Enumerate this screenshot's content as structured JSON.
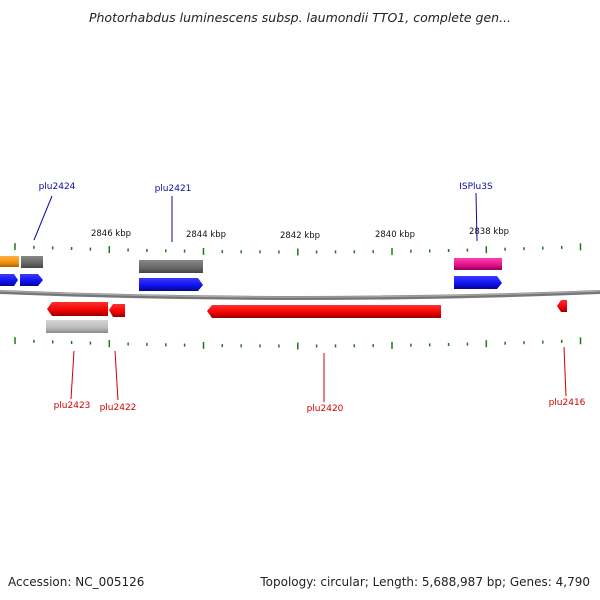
{
  "title": "Photorhabdus luminescens subsp. laumondii TTO1, complete gen...",
  "footer": {
    "accession": "Accession: NC_005126",
    "summary": "Topology: circular; Length: 5,688,987 bp; Genes: 4,790"
  },
  "scale_labels": [
    "2846 kbp",
    "2844 kbp",
    "2842 kbp",
    "2840 kbp",
    "2838 kbp"
  ],
  "top_labels": [
    {
      "text": "plu2424",
      "color": "#0b0b9e"
    },
    {
      "text": "plu2421",
      "color": "#0b0b9e"
    },
    {
      "text": "ISPlu3S",
      "color": "#0b0b9e"
    }
  ],
  "bottom_labels": [
    {
      "text": "plu2423",
      "color": "#d00000"
    },
    {
      "text": "plu2422",
      "color": "#d00000"
    },
    {
      "text": "plu2420",
      "color": "#d00000"
    },
    {
      "text": "plu2416",
      "color": "#d00000"
    }
  ],
  "colors": {
    "backbone": "#888888",
    "tick": "#1a7a1a",
    "forward_cds": "#1010f0",
    "reverse_cds": "#ee0000",
    "gene_gray": "#666666",
    "gene_light": "#bbbbbb",
    "gene_orange": "#f09010",
    "gene_magenta": "#e0108a"
  }
}
